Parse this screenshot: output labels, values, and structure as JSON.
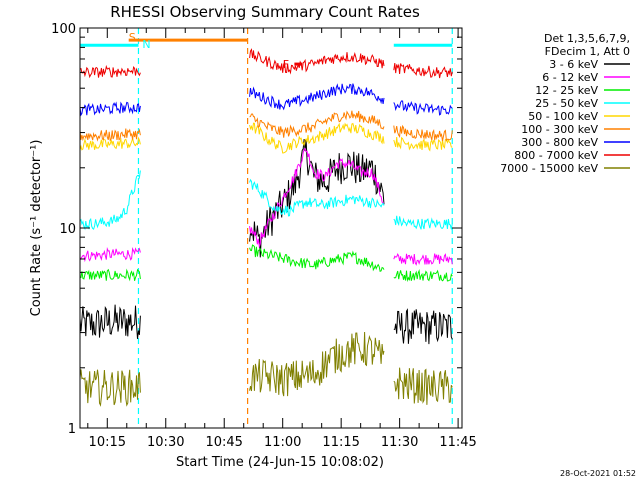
{
  "chart_data": {
    "type": "line",
    "title": "RHESSI Observing Summary Count Rates",
    "xlabel": "Start Time (24-Jun-15 10:08:02)",
    "ylabel": "Count Rate (s⁻¹ detector⁻¹)",
    "yscale": "log",
    "ylim": [
      1,
      100
    ],
    "y_ticks": [
      {
        "value": 1,
        "label": "1"
      },
      {
        "value": 10,
        "label": "10"
      },
      {
        "value": 100,
        "label": "100"
      }
    ],
    "xlim_minutes": [
      0,
      98
    ],
    "x_ticks": [
      {
        "minute": 7,
        "label": "10:15"
      },
      {
        "minute": 22,
        "label": "10:30"
      },
      {
        "minute": 37,
        "label": "10:45"
      },
      {
        "minute": 52,
        "label": "11:00"
      },
      {
        "minute": 67,
        "label": "11:15"
      },
      {
        "minute": 82,
        "label": "11:30"
      },
      {
        "minute": 97,
        "label": "11:45"
      }
    ],
    "legend_header": [
      "Det 1,3,5,6,7,9,",
      "FDecim 1, Att 0"
    ],
    "legend_position": "right",
    "data_gaps_minutes": [
      [
        15.5,
        43.5
      ],
      [
        78,
        80.5
      ]
    ],
    "series": [
      {
        "name": "3 - 6 keV",
        "color": "#000000",
        "x": [
          0,
          4,
          8,
          12,
          15.5,
          43.5,
          46,
          49,
          52,
          55,
          58,
          60,
          63,
          66,
          69,
          72,
          75,
          78,
          80.5,
          84,
          88,
          92
        ],
        "y": [
          3.3,
          3.3,
          3.4,
          3.4,
          3.4,
          10.5,
          8.5,
          11,
          13,
          16,
          24,
          18,
          17,
          20,
          21,
          19,
          20,
          14,
          3.2,
          3.2,
          3.2,
          3.2
        ]
      },
      {
        "name": "6 - 12 keV",
        "color": "#ff00ff",
        "x": [
          0,
          4,
          8,
          12,
          15.5,
          43.5,
          46,
          49,
          52,
          55,
          58,
          60,
          63,
          66,
          69,
          72,
          75,
          78,
          80.5,
          84,
          88,
          92
        ],
        "y": [
          7.3,
          7.3,
          7.4,
          7.4,
          7.4,
          10,
          8.5,
          11,
          14,
          18,
          25,
          19,
          18,
          21,
          21,
          19,
          19,
          13,
          7,
          7,
          7,
          7
        ]
      },
      {
        "name": "12 - 25 keV",
        "color": "#00ee00",
        "x": [
          0,
          4,
          8,
          12,
          15.5,
          43.5,
          46,
          50,
          55,
          60,
          65,
          70,
          75,
          78,
          80.5,
          84,
          88,
          92
        ],
        "y": [
          5.8,
          5.8,
          5.8,
          5.8,
          5.8,
          7.8,
          7.5,
          7.2,
          6.8,
          6.5,
          6.9,
          7.2,
          6.6,
          6.2,
          5.8,
          5.8,
          5.8,
          5.8
        ]
      },
      {
        "name": "25 - 50 keV",
        "color": "#00ffff",
        "x": [
          0,
          4,
          8,
          10,
          12,
          14,
          15.5,
          43.5,
          46,
          50,
          54,
          58,
          62,
          66,
          70,
          74,
          78,
          80.5,
          84,
          88,
          92
        ],
        "y": [
          10.5,
          10.5,
          10.8,
          11.2,
          12.5,
          16,
          19,
          17,
          15.5,
          12.5,
          12.2,
          13.5,
          13,
          13.5,
          14,
          13.5,
          12.8,
          11,
          10.5,
          10.5,
          10.5
        ]
      },
      {
        "name": "50 - 100 keV",
        "color": "#ffd700",
        "x": [
          0,
          4,
          8,
          12,
          15.5,
          43.5,
          48,
          52,
          56,
          60,
          64,
          68,
          72,
          76,
          80.5,
          84,
          88,
          92
        ],
        "y": [
          26,
          26,
          26.2,
          26.5,
          26.5,
          33,
          28,
          25,
          27,
          28,
          30,
          32,
          31,
          29,
          27,
          26.5,
          26,
          26
        ]
      },
      {
        "name": "100 - 300 keV",
        "color": "#ff8000",
        "x": [
          0,
          4,
          8,
          12,
          15.5,
          43.5,
          48,
          52,
          56,
          60,
          64,
          68,
          72,
          76,
          80.5,
          84,
          88,
          92
        ],
        "y": [
          29,
          29,
          29,
          29.5,
          29.5,
          36,
          32,
          30,
          31,
          32,
          35,
          37,
          36,
          34,
          31,
          30,
          29.5,
          29
        ]
      },
      {
        "name": "300 - 800 keV",
        "color": "#0000ff",
        "x": [
          0,
          4,
          8,
          12,
          15.5,
          43.5,
          48,
          52,
          56,
          60,
          64,
          68,
          72,
          76,
          80.5,
          84,
          88,
          92
        ],
        "y": [
          39,
          39,
          39.5,
          40,
          40,
          48,
          44,
          41,
          43,
          45,
          48,
          50,
          49,
          46,
          42,
          40,
          39.5,
          39
        ]
      },
      {
        "name": "800 - 7000 keV",
        "color": "#ee0000",
        "x": [
          0,
          4,
          8,
          12,
          15.5,
          43.5,
          48,
          52,
          56,
          60,
          64,
          68,
          72,
          76,
          80.5,
          84,
          88,
          92
        ],
        "y": [
          60,
          60,
          60.5,
          61,
          61,
          74,
          68,
          63,
          64,
          66,
          70,
          72,
          71,
          68,
          63,
          62,
          61,
          60
        ]
      },
      {
        "name": "7000 - 15000 keV",
        "color": "#808000",
        "x": [
          0,
          4,
          8,
          12,
          15.5,
          43.5,
          48,
          52,
          56,
          60,
          64,
          68,
          72,
          76,
          80.5,
          84,
          88,
          92
        ],
        "y": [
          1.6,
          1.6,
          1.6,
          1.6,
          1.6,
          1.8,
          1.8,
          1.75,
          1.8,
          1.85,
          2.2,
          2.4,
          2.5,
          2.4,
          1.7,
          1.65,
          1.6,
          1.6
        ]
      }
    ],
    "annotations": [
      {
        "label": "S",
        "color": "#ff8000",
        "x_minute": 12.5,
        "y": 90
      },
      {
        "label": "N",
        "color": "#00ffff",
        "x_minute": 16,
        "y": 83
      },
      {
        "label": "F",
        "color": "#ee0000",
        "x_minute": 52,
        "y": 66
      }
    ],
    "flag_lines": [
      {
        "color": "#ff8000",
        "x_minute": 43,
        "style": "dashed"
      },
      {
        "color": "#00ffff",
        "x_minute": 15,
        "style": "dashed"
      },
      {
        "color": "#00ffff",
        "x_minute": 95.5,
        "style": "dashed"
      }
    ],
    "flag_bars": [
      {
        "label": "saa",
        "color": "#ff8000",
        "x_range": [
          12.5,
          43
        ],
        "y": 87
      },
      {
        "label": "night-left",
        "color": "#00ffff",
        "x_range": [
          0,
          15
        ],
        "y": 82
      },
      {
        "label": "night-right",
        "color": "#00ffff",
        "x_range": [
          80.5,
          95.5
        ],
        "y": 82
      },
      {
        "label": "flare",
        "color": "#ee0000",
        "x_range": [
          55,
          57
        ],
        "y": 66
      }
    ]
  },
  "footer": {
    "timestamp": "28-Oct-2021 01:52"
  }
}
